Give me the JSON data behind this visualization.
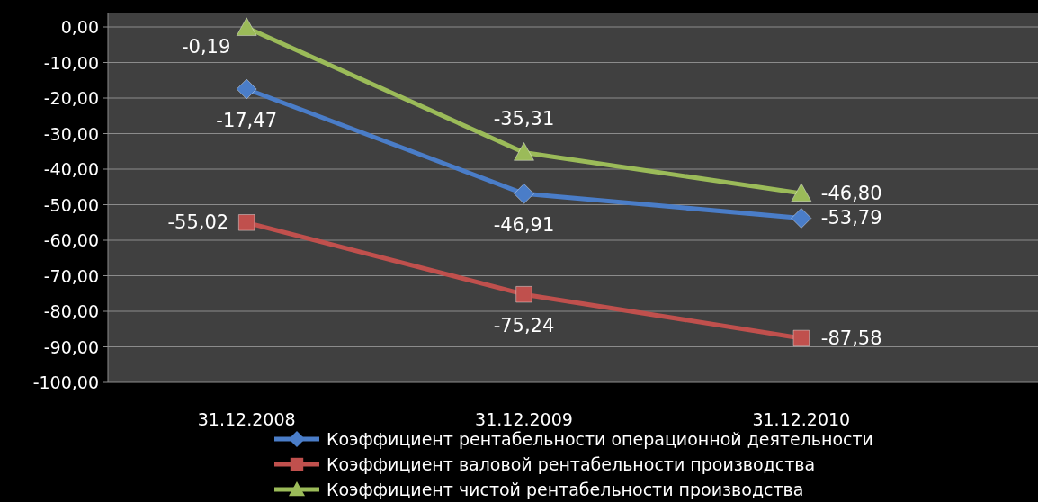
{
  "chart_data": {
    "type": "line",
    "categories": [
      "31.12.2008",
      "31.12.2009",
      "31.12.2010"
    ],
    "series": [
      {
        "name": "Коэффициент рентабельности операционной деятельности",
        "color": "#4a7dc8",
        "marker": "diamond",
        "values": [
          -17.47,
          -46.91,
          -53.79
        ],
        "value_labels": [
          "-17,47",
          "-46,91",
          "-53,79"
        ]
      },
      {
        "name": "Коэффициент валовой рентабельности производства",
        "color": "#c0504d",
        "marker": "square",
        "values": [
          -55.02,
          -75.24,
          -87.58
        ],
        "value_labels": [
          "-55,02",
          "-75,24",
          "-87,58"
        ]
      },
      {
        "name": "Коэффициент чистой рентабельности производства",
        "color": "#9bbb59",
        "marker": "triangle",
        "values": [
          -0.19,
          -35.31,
          -46.8
        ],
        "value_labels": [
          "-0,19",
          "-35,31",
          "-46,80"
        ]
      }
    ],
    "ylim": [
      -100,
      0
    ],
    "yticks": [
      {
        "value": 0,
        "label": "0,00"
      },
      {
        "value": -10,
        "label": "-10,00"
      },
      {
        "value": -20,
        "label": "-20,00"
      },
      {
        "value": -30,
        "label": "-30,00"
      },
      {
        "value": -40,
        "label": "-40,00"
      },
      {
        "value": -50,
        "label": "-50,00"
      },
      {
        "value": -60,
        "label": "-60,00"
      },
      {
        "value": -70,
        "label": "-70,00"
      },
      {
        "value": -80,
        "label": "-80,00"
      },
      {
        "value": -90,
        "label": "-90,00"
      },
      {
        "value": -100,
        "label": "-100,00"
      }
    ],
    "grid": "y",
    "legend": "bottom",
    "line_style": "solid"
  }
}
